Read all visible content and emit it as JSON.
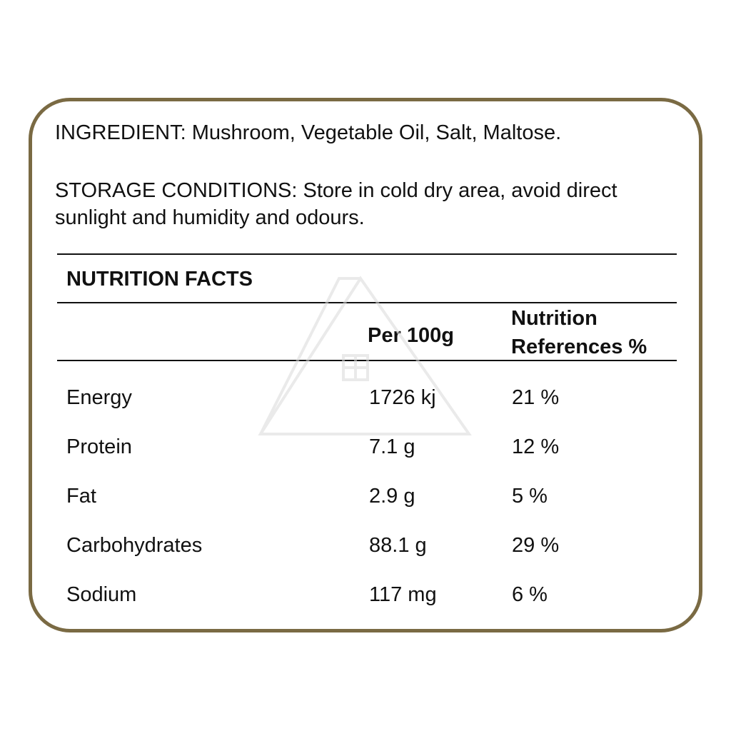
{
  "ingredient": "INGREDIENT: Mushroom, Vegetable Oil, Salt, Maltose.",
  "storage": "STORAGE CONDITIONS: Store in cold dry area, avoid direct sunlight and humidity and odours.",
  "nutrition": {
    "title": "NUTRITION FACTS",
    "col_per": "Per 100g",
    "col_ref": "Nutrition References %",
    "rows": [
      {
        "name": "Energy",
        "value": "1726 kj",
        "ref": "21 %"
      },
      {
        "name": "Protein",
        "value": "7.1 g",
        "ref": "12 %"
      },
      {
        "name": "Fat",
        "value": "2.9 g",
        "ref": "5 %"
      },
      {
        "name": "Carbohydrates",
        "value": "88.1 g",
        "ref": "29 %"
      },
      {
        "name": "Sodium",
        "value": "117 mg",
        "ref": "6 %"
      }
    ]
  },
  "colors": {
    "border": "#7a6a43",
    "text": "#111111"
  }
}
